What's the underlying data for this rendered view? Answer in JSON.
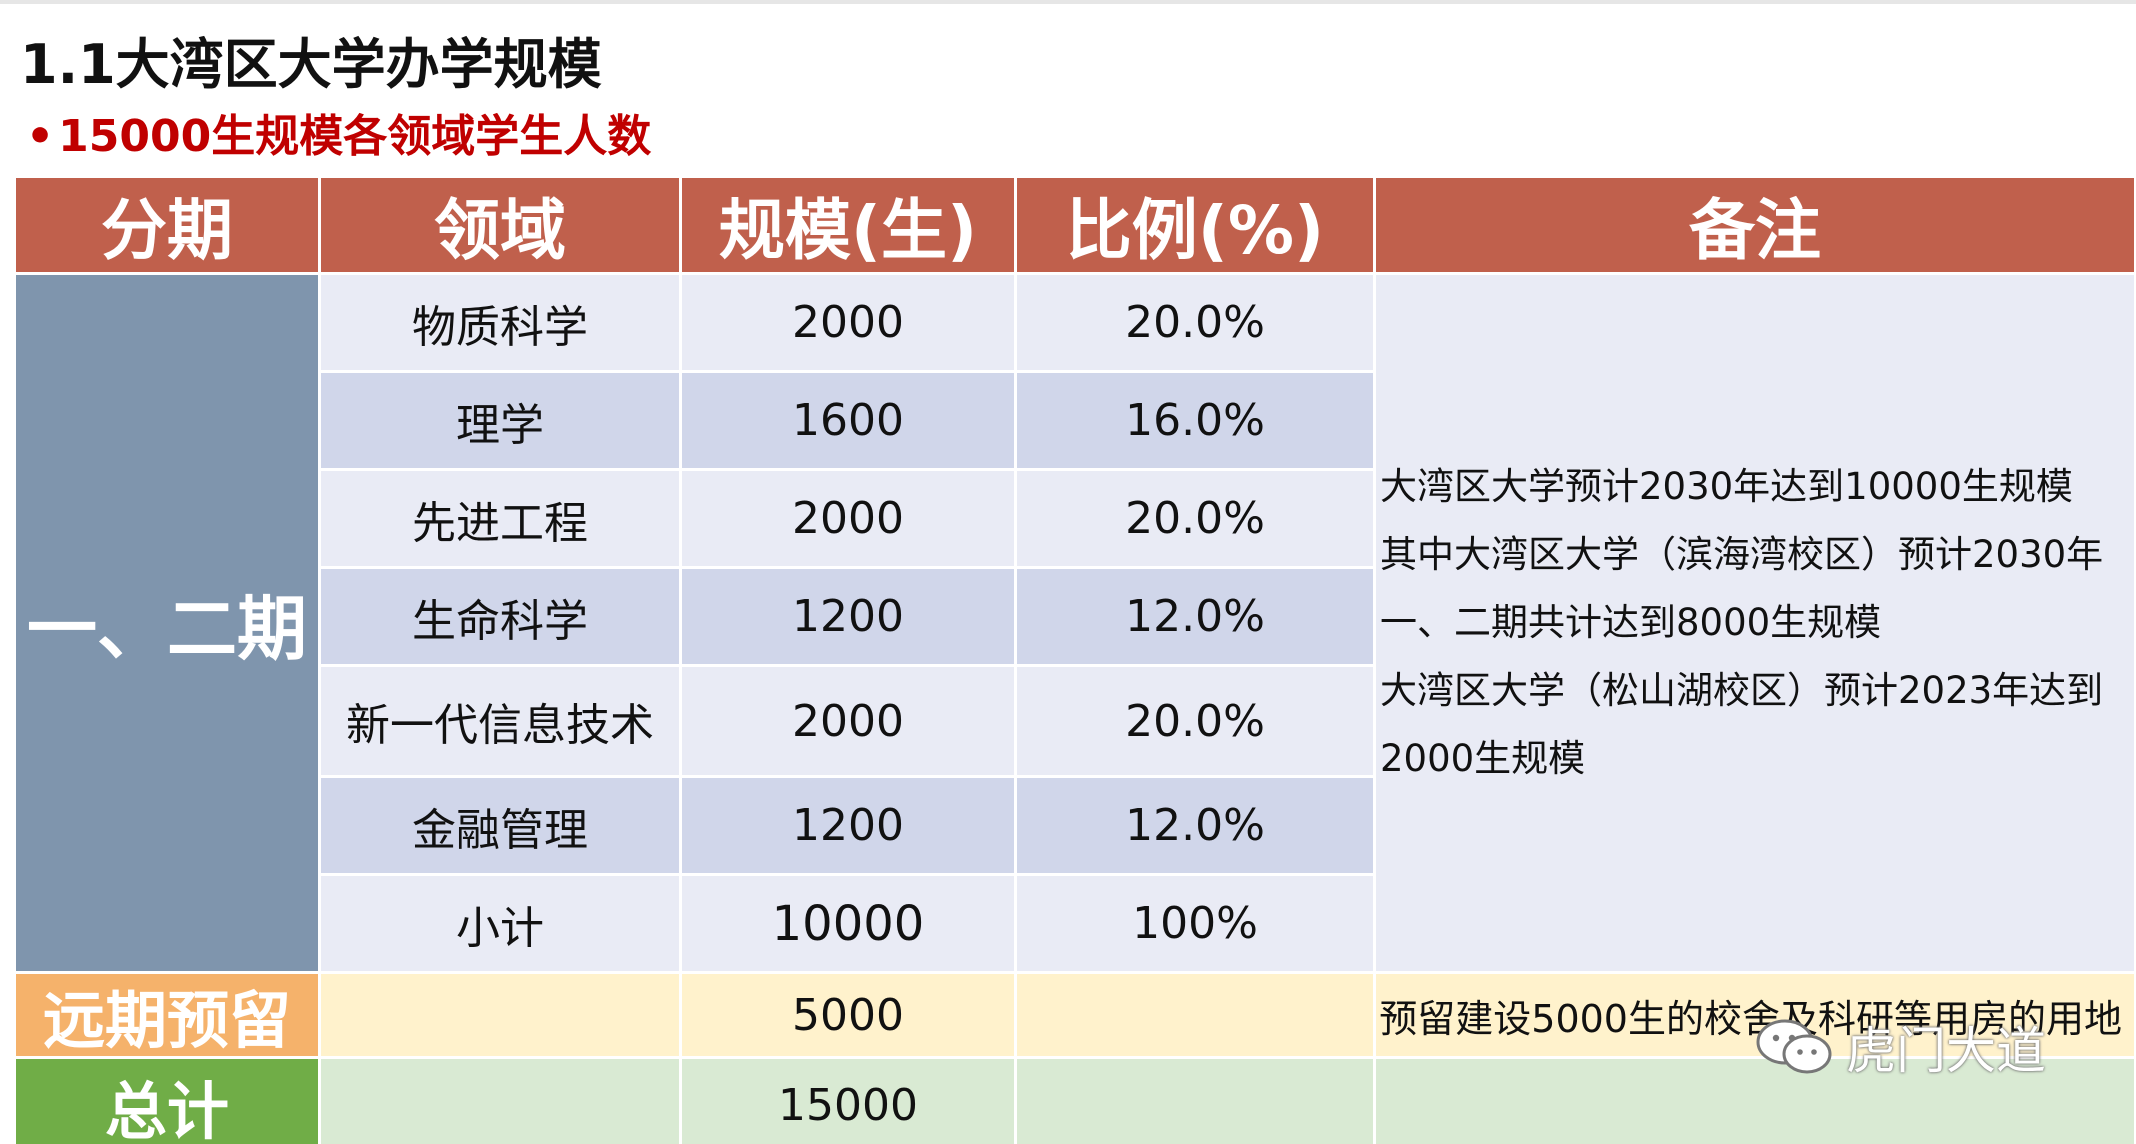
{
  "slide": {
    "title": "1.1大湾区大学办学规模",
    "bullet": "•",
    "subtitle": "15000生规模各领域学生人数"
  },
  "table": {
    "headers": [
      "分期",
      "领域",
      "规模(生)",
      "比例(%)",
      "备注"
    ],
    "phase_one_two": {
      "label": "一、二期",
      "rows": [
        {
          "field": "物质科学",
          "scale": "2000",
          "ratio": "20.0%"
        },
        {
          "field": "理学",
          "scale": "1600",
          "ratio": "16.0%"
        },
        {
          "field": "先进工程",
          "scale": "2000",
          "ratio": "20.0%"
        },
        {
          "field": "生命科学",
          "scale": "1200",
          "ratio": "12.0%"
        },
        {
          "field": "新一代信息技术",
          "scale": "2000",
          "ratio": "20.0%"
        },
        {
          "field": "金融管理",
          "scale": "1200",
          "ratio": "12.0%"
        },
        {
          "field": "小计",
          "scale": "10000",
          "ratio": "100%"
        }
      ],
      "note_lines": [
        "大湾区大学预计2030年达到10000生规模",
        "其中大湾区大学（滨海湾校区）预计2030年",
        "一、二期共计达到8000生规模",
        "大湾区大学（松山湖校区）预计2023年达到",
        "2000生规模"
      ]
    },
    "reserve": {
      "label": "远期预留",
      "scale": "5000",
      "note": "预留建设5000生的校舍及科研等用房的用地"
    },
    "total": {
      "label": "总计",
      "scale": "15000"
    }
  },
  "watermark": {
    "text": "虎门大道",
    "icon": "wechat-icon"
  }
}
